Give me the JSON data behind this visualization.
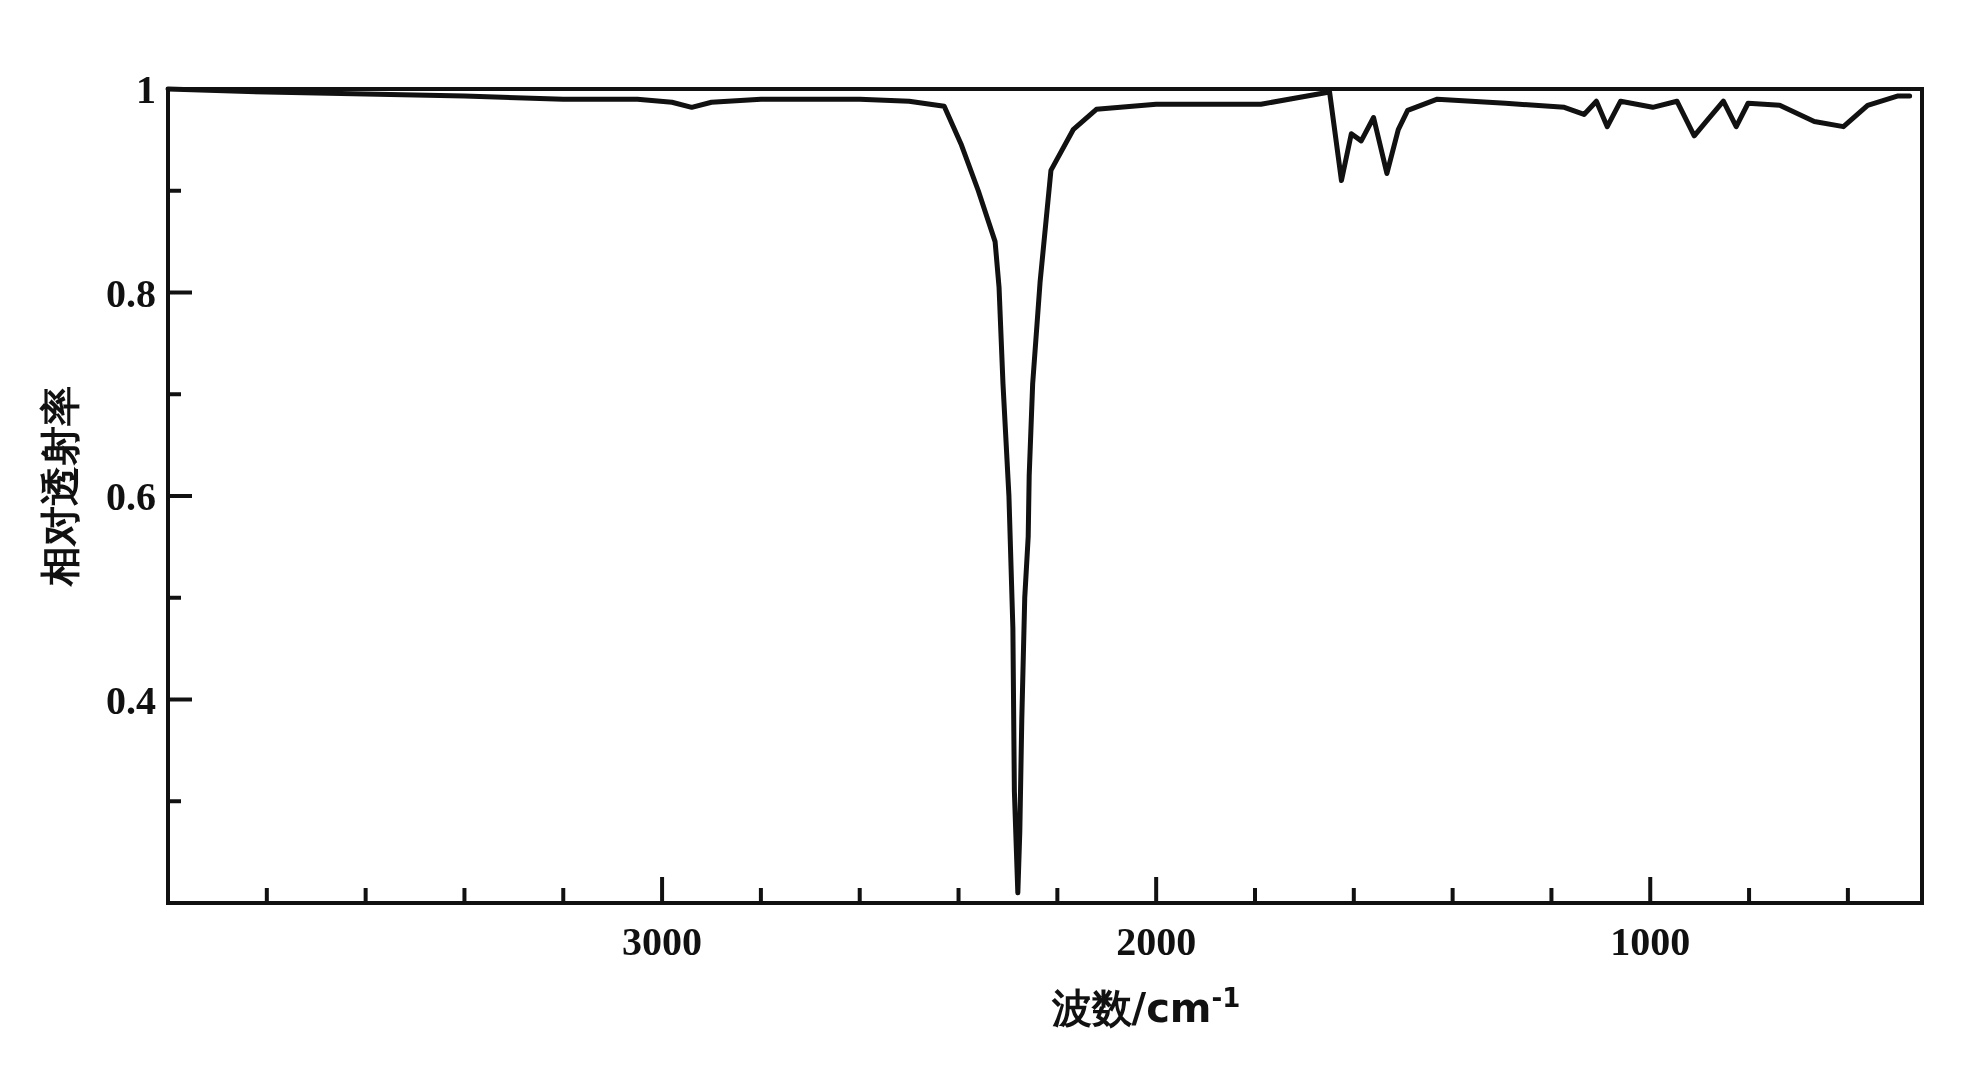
{
  "chart_data": {
    "type": "line",
    "xlabel": "波数/cm$^{-1}$",
    "ylabel": "相对透射率",
    "color": "#111111",
    "line_style": "solid",
    "x": [
      4000,
      3800,
      3600,
      3400,
      3200,
      3050,
      2980,
      2940,
      2900,
      2800,
      2600,
      2500,
      2429,
      2395,
      2360,
      2326,
      2318,
      2310,
      2298,
      2290,
      2287,
      2280,
      2276,
      2272,
      2266,
      2259,
      2257,
      2250,
      2235,
      2213,
      2168,
      2121,
      2000,
      1900,
      1788,
      1649,
      1625,
      1605,
      1585,
      1560,
      1533,
      1510,
      1491,
      1431,
      1293,
      1174,
      1134,
      1109,
      1087,
      1060,
      995,
      946,
      911,
      887,
      852,
      826,
      802,
      738,
      668,
      609,
      560,
      500,
      475
    ],
    "values": [
      1.0,
      0.997,
      0.995,
      0.993,
      0.99,
      0.99,
      0.987,
      0.982,
      0.987,
      0.99,
      0.99,
      0.988,
      0.983,
      0.946,
      0.9,
      0.85,
      0.805,
      0.71,
      0.6,
      0.47,
      0.31,
      0.21,
      0.27,
      0.38,
      0.5,
      0.56,
      0.62,
      0.71,
      0.81,
      0.92,
      0.96,
      0.98,
      0.985,
      0.985,
      0.985,
      0.997,
      0.91,
      0.956,
      0.949,
      0.972,
      0.917,
      0.96,
      0.979,
      0.99,
      0.986,
      0.982,
      0.975,
      0.988,
      0.963,
      0.988,
      0.982,
      0.988,
      0.954,
      0.968,
      0.988,
      0.963,
      0.986,
      0.984,
      0.968,
      0.963,
      0.984,
      0.993,
      0.993
    ],
    "xlim": [
      4000,
      450
    ],
    "ylim": [
      0.2,
      1
    ],
    "xticks": [
      {
        "value": 3800,
        "label": null
      },
      {
        "value": 3600,
        "label": null
      },
      {
        "value": 3400,
        "label": null
      },
      {
        "value": 3200,
        "label": null
      },
      3000,
      {
        "value": 2800,
        "label": null
      },
      {
        "value": 2600,
        "label": null
      },
      {
        "value": 2400,
        "label": null
      },
      {
        "value": 2200,
        "label": null
      },
      2000,
      {
        "value": 1800,
        "label": null
      },
      {
        "value": 1600,
        "label": null
      },
      {
        "value": 1400,
        "label": null
      },
      {
        "value": 1200,
        "label": null
      },
      1000,
      {
        "value": 800,
        "label": null
      },
      {
        "value": 600,
        "label": null
      }
    ],
    "yticks": [
      {
        "value": 0.3,
        "label": null
      },
      0.4,
      {
        "value": 0.5,
        "label": null
      },
      0.6,
      {
        "value": 0.7,
        "label": null
      },
      0.8,
      {
        "value": 0.9,
        "label": null
      },
      1
    ]
  }
}
